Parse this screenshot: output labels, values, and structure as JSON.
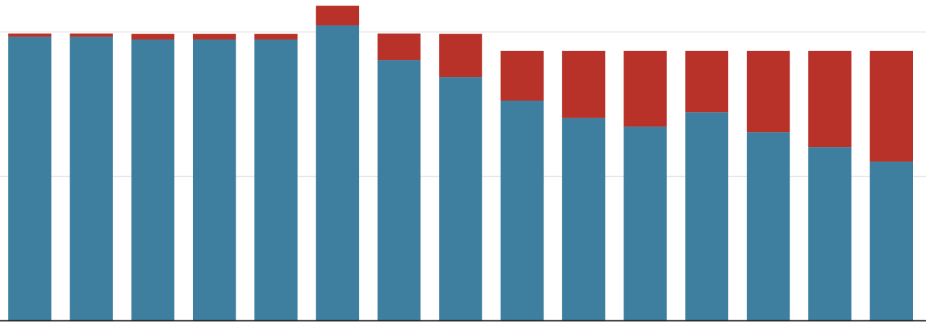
{
  "chart_data": {
    "type": "bar",
    "stacked": true,
    "categories": [
      "",
      "",
      "",
      "",
      "",
      "",
      "",
      "",
      "",
      "",
      "",
      "",
      "",
      "",
      ""
    ],
    "series": [
      {
        "values": [
          98.2,
          98.2,
          97.3,
          97.3,
          97.3,
          102.2,
          90.2,
          84.3,
          76.1,
          70.1,
          67.1,
          72.1,
          65.2,
          60.0,
          55.0
        ]
      },
      {
        "values": [
          1.2,
          1.2,
          2.0,
          2.0,
          2.0,
          6.8,
          9.2,
          15.0,
          17.3,
          23.3,
          26.3,
          21.3,
          28.2,
          33.4,
          38.4
        ]
      }
    ],
    "colors": [
      "#3e7f9f",
      "#b8322a"
    ],
    "ylim": [
      0,
      111
    ],
    "yticks": [
      50,
      100
    ],
    "grid": true,
    "legend": "none"
  }
}
